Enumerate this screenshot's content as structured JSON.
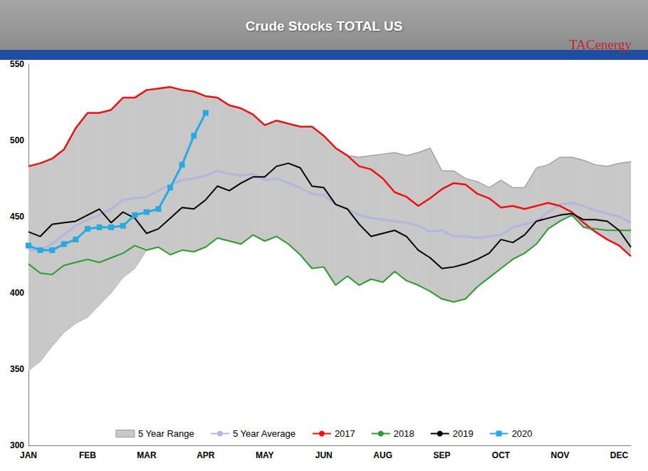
{
  "chart_data": {
    "type": "line",
    "title": "Crude Stocks TOTAL US",
    "logo": "TACenergy",
    "categories": [
      "JAN",
      null,
      null,
      null,
      null,
      "FEB",
      null,
      null,
      null,
      null,
      "MAR",
      null,
      null,
      null,
      null,
      "APR",
      null,
      null,
      null,
      null,
      "MAY",
      null,
      null,
      null,
      null,
      "JUN",
      null,
      null,
      null,
      null,
      "AUG",
      null,
      null,
      null,
      null,
      "SEP",
      null,
      null,
      null,
      null,
      "OCT",
      null,
      null,
      null,
      null,
      "NOV",
      null,
      null,
      null,
      null,
      "DEC",
      null
    ],
    "series": [
      {
        "name": "5 Year Range",
        "type": "range",
        "color": "#c8c8c8",
        "low": [
          349,
          355,
          365,
          374,
          380,
          384,
          392,
          400,
          410,
          416,
          428,
          430,
          425,
          428,
          427,
          430,
          436,
          434,
          432,
          438,
          434,
          437,
          432,
          425,
          416,
          417,
          405,
          411,
          405,
          409,
          407,
          414,
          408,
          405,
          401,
          396,
          394,
          396,
          404,
          410,
          416,
          422,
          426,
          432,
          442,
          447,
          451,
          443,
          440,
          435,
          431,
          424
        ],
        "high": [
          483,
          485,
          488,
          494,
          508,
          518,
          518,
          520,
          528,
          528,
          533,
          534,
          535,
          533,
          532,
          529,
          528,
          523,
          521,
          517,
          510,
          513,
          511,
          509,
          509,
          503,
          495,
          490,
          489,
          490,
          491,
          492,
          490,
          492,
          495,
          480,
          480,
          475,
          473,
          469,
          474,
          469,
          469,
          482,
          484,
          489,
          489,
          487,
          484,
          483,
          485,
          486
        ]
      },
      {
        "name": "5 Year Average",
        "color": "#b4b4dc",
        "values": [
          428,
          428,
          432,
          438,
          444,
          448,
          451,
          455,
          461,
          462,
          463,
          467,
          471,
          474,
          475,
          477,
          480,
          478,
          477,
          478,
          474,
          475,
          472,
          469,
          465,
          464,
          458,
          455,
          451,
          449,
          448,
          447,
          446,
          444,
          440,
          441,
          437,
          437,
          436,
          437,
          438,
          443,
          445,
          447,
          453,
          458,
          459,
          457,
          454,
          452,
          450,
          446
        ]
      },
      {
        "name": "2017",
        "color": "#ee1111",
        "values": [
          483,
          485,
          488,
          494,
          508,
          518,
          518,
          520,
          528,
          528,
          533,
          534,
          535,
          533,
          532,
          529,
          528,
          523,
          521,
          517,
          510,
          513,
          511,
          509,
          509,
          503,
          495,
          490,
          483,
          481,
          475,
          466,
          463,
          457,
          462,
          468,
          472,
          471,
          465,
          462,
          456,
          457,
          455,
          457,
          459,
          457,
          453,
          446,
          440,
          435,
          431,
          424
        ]
      },
      {
        "name": "2018",
        "color": "#2e9a32",
        "values": [
          419,
          413,
          412,
          418,
          420,
          422,
          420,
          423,
          426,
          431,
          428,
          430,
          425,
          428,
          427,
          430,
          436,
          434,
          432,
          438,
          434,
          437,
          432,
          425,
          416,
          417,
          405,
          411,
          405,
          409,
          407,
          414,
          408,
          405,
          401,
          396,
          394,
          396,
          404,
          410,
          416,
          422,
          426,
          432,
          442,
          447,
          451,
          443,
          442,
          441,
          441,
          441
        ]
      },
      {
        "name": "2019",
        "color": "#000000",
        "values": [
          440,
          437,
          445,
          446,
          447,
          451,
          455,
          446,
          453,
          449,
          439,
          442,
          449,
          456,
          455,
          461,
          470,
          467,
          472,
          476,
          476,
          483,
          485,
          482,
          470,
          469,
          458,
          455,
          445,
          437,
          439,
          441,
          437,
          428,
          423,
          416,
          417,
          419,
          422,
          426,
          435,
          433,
          438,
          447,
          449,
          451,
          452,
          448,
          448,
          447,
          441,
          430
        ]
      },
      {
        "name": "2020",
        "color": "#27aae1",
        "marker": "square",
        "values": [
          431,
          428,
          428,
          432,
          435,
          442,
          443,
          443,
          444,
          451,
          453,
          455,
          469,
          484,
          503,
          518,
          null,
          null,
          null,
          null,
          null,
          null,
          null,
          null,
          null,
          null,
          null,
          null,
          null,
          null,
          null,
          null,
          null,
          null,
          null,
          null,
          null,
          null,
          null,
          null,
          null,
          null,
          null,
          null,
          null,
          null,
          null,
          null,
          null,
          null,
          null,
          null
        ]
      }
    ],
    "ylim": [
      300,
      550
    ],
    "yticks": [
      300,
      350,
      400,
      450,
      500,
      550
    ],
    "grid": false,
    "legend": "bottom"
  }
}
